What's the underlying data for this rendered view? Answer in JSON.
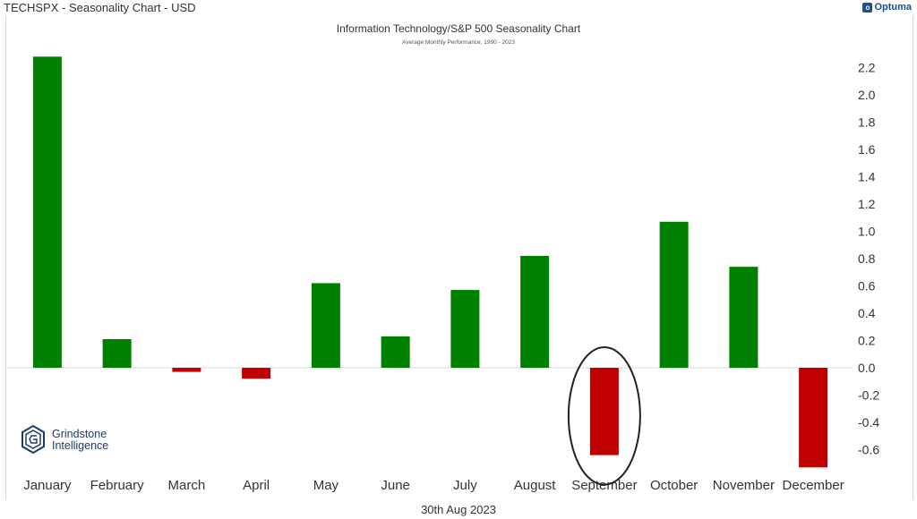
{
  "window": {
    "title": "TECHSPX - Seasonality Chart - USD",
    "brand": "Optuma",
    "footer_date": "30th Aug 2023"
  },
  "logo": {
    "line1": "Grindstone",
    "line2": "Intelligence"
  },
  "chart_data": {
    "type": "bar",
    "title": "Information Technology/S&P 500 Seasonality Chart",
    "subtitle": "Average Monthly Performance, 1990 - 2023",
    "xlabel": "",
    "ylabel": "",
    "categories": [
      "January",
      "February",
      "March",
      "April",
      "May",
      "June",
      "July",
      "August",
      "September",
      "October",
      "November",
      "December"
    ],
    "values": [
      2.28,
      0.21,
      -0.03,
      -0.08,
      0.62,
      0.23,
      0.57,
      0.82,
      -0.64,
      1.07,
      0.74,
      -0.73
    ],
    "ylim": [
      -0.73,
      2.28
    ],
    "yticks": [
      "2.2",
      "2.0",
      "1.8",
      "1.6",
      "1.4",
      "1.2",
      "1.0",
      "0.8",
      "0.6",
      "0.4",
      "0.2",
      "0.0",
      "-0.2",
      "-0.4",
      "-0.6"
    ],
    "ytick_values": [
      2.2,
      2.0,
      1.8,
      1.6,
      1.4,
      1.2,
      1.0,
      0.8,
      0.6,
      0.4,
      0.2,
      0.0,
      -0.2,
      -0.4,
      -0.6
    ],
    "axis_position": "right",
    "grid": false,
    "colors": {
      "positive": "#008000",
      "negative": "#c00000",
      "highlight_ring": "#222222"
    },
    "highlighted_category": "September"
  }
}
